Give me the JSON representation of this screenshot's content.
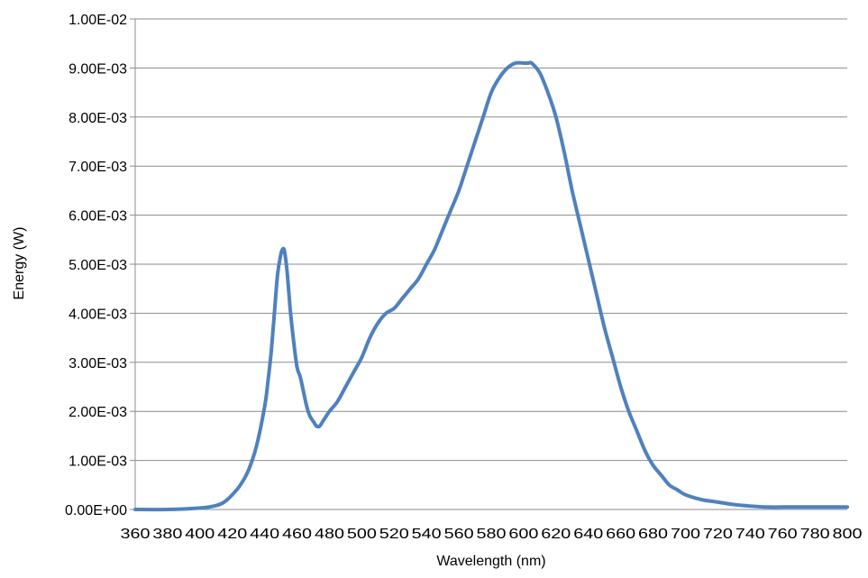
{
  "chart_data": {
    "type": "line",
    "xlabel": "Wavelength  (nm)",
    "ylabel": "Energy  (W)",
    "xlim": [
      360,
      800
    ],
    "ylim": [
      0,
      0.01
    ],
    "x_ticks": [
      360,
      380,
      400,
      420,
      440,
      460,
      480,
      500,
      520,
      540,
      560,
      580,
      600,
      620,
      640,
      660,
      680,
      700,
      720,
      740,
      760,
      780,
      800
    ],
    "x_tick_labels": [
      "360",
      "380",
      "400",
      "420",
      "440",
      "460",
      "480",
      "500",
      "520",
      "540",
      "560",
      "580",
      "600",
      "620",
      "640",
      "660",
      "680",
      "700",
      "720",
      "740",
      "760",
      "780",
      "800"
    ],
    "y_ticks": [
      0,
      0.001,
      0.002,
      0.003,
      0.004,
      0.005,
      0.006,
      0.007,
      0.008,
      0.009,
      0.01
    ],
    "y_tick_labels": [
      "0.00E+00",
      "1.00E-03",
      "2.00E-03",
      "3.00E-03",
      "4.00E-03",
      "5.00E-03",
      "6.00E-03",
      "7.00E-03",
      "8.00E-03",
      "9.00E-03",
      "1.00E-02"
    ],
    "grid": "horizontal",
    "legend": "none",
    "series": [
      {
        "color": "#4f81bd",
        "x": [
          360,
          380,
          400,
          410,
          415,
          420,
          425,
          430,
          435,
          440,
          442,
          444,
          446,
          448,
          450,
          451,
          452,
          453,
          454,
          455,
          456,
          458,
          460,
          462,
          464,
          466,
          468,
          470,
          472,
          474,
          476,
          478,
          480,
          485,
          490,
          495,
          500,
          505,
          510,
          515,
          520,
          525,
          530,
          535,
          540,
          545,
          550,
          555,
          560,
          565,
          570,
          575,
          580,
          585,
          590,
          595,
          600,
          603,
          605,
          610,
          615,
          620,
          625,
          630,
          635,
          640,
          645,
          650,
          655,
          660,
          665,
          670,
          675,
          680,
          685,
          690,
          695,
          700,
          710,
          720,
          730,
          740,
          750,
          760,
          770,
          780,
          790,
          800
        ],
        "y": [
          0.0,
          0.0,
          3e-05,
          8e-05,
          0.00015,
          0.0003,
          0.0005,
          0.0008,
          0.0013,
          0.0021,
          0.0026,
          0.0032,
          0.004,
          0.0048,
          0.0052,
          0.0053,
          0.0053,
          0.0051,
          0.0048,
          0.0044,
          0.004,
          0.0034,
          0.0029,
          0.0027,
          0.0024,
          0.0021,
          0.0019,
          0.0018,
          0.0017,
          0.0017,
          0.0018,
          0.0019,
          0.002,
          0.0022,
          0.0025,
          0.0028,
          0.0031,
          0.0035,
          0.0038,
          0.004,
          0.0041,
          0.0043,
          0.0045,
          0.0047,
          0.005,
          0.0053,
          0.0057,
          0.0061,
          0.0065,
          0.007,
          0.0075,
          0.008,
          0.0085,
          0.0088,
          0.009,
          0.0091,
          0.0091,
          0.0091,
          0.0091,
          0.0089,
          0.0085,
          0.008,
          0.0073,
          0.0065,
          0.0058,
          0.0051,
          0.0044,
          0.0037,
          0.0031,
          0.0025,
          0.002,
          0.0016,
          0.0012,
          0.0009,
          0.0007,
          0.0005,
          0.0004,
          0.0003,
          0.0002,
          0.00015,
          0.0001,
          7e-05,
          5e-05,
          5e-05,
          5e-05,
          5e-05,
          5e-05,
          5e-05
        ]
      }
    ]
  }
}
